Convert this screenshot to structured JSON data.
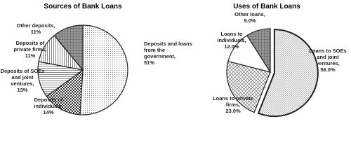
{
  "chart_data": [
    {
      "type": "pie",
      "title": "Sources of Bank Loans",
      "categories": [
        "Deposits and loans from the government,",
        "Deposits of individuals,",
        "Deposits of SOEs and joint ventures,",
        "Deposits of private firms,",
        "Other deposits,"
      ],
      "values": [
        51,
        14,
        13,
        11,
        11
      ],
      "value_labels": [
        "51%",
        "14%",
        "13%",
        "11%",
        "11%"
      ],
      "patterns": [
        "dots",
        "checker",
        "hlines",
        "vlines",
        "darkgrid"
      ],
      "explode": [
        false,
        false,
        false,
        false,
        false
      ]
    },
    {
      "type": "pie",
      "title": "Uses of Bank Loans",
      "categories": [
        "Loans to SOEs and joint ventures,",
        "Loans to private firms,",
        "Loans to individuals,",
        "Other loans,"
      ],
      "values": [
        56.0,
        23.0,
        12.0,
        9.0
      ],
      "value_labels": [
        "56.0%",
        "23.0%",
        "12.0%",
        "9.0%"
      ],
      "patterns": [
        "finecross",
        "diagcross",
        "plain",
        "darkgrid"
      ],
      "explode": [
        true,
        false,
        false,
        false
      ]
    }
  ]
}
